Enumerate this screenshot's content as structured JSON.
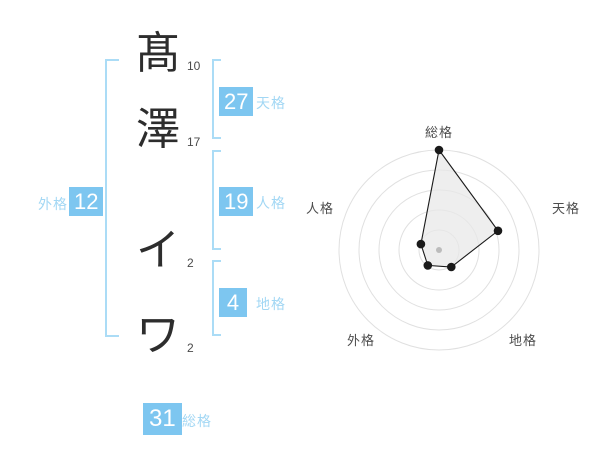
{
  "page": {
    "background": "#ffffff"
  },
  "name": {
    "full": "髙澤 イワ",
    "chars": [
      {
        "glyph": "髙",
        "strokes": "10"
      },
      {
        "glyph": "澤",
        "strokes": "17"
      },
      {
        "glyph": "イ",
        "strokes": "2"
      },
      {
        "glyph": "ワ",
        "strokes": "2"
      }
    ]
  },
  "kaku": {
    "tenkaku": {
      "label": "天格",
      "value": "27"
    },
    "jinkaku": {
      "label": "人格",
      "value": "19"
    },
    "chikaku": {
      "label": "地格",
      "value": "4"
    },
    "gaikaku": {
      "label": "外格",
      "value": "12"
    },
    "soukaku": {
      "label": "総格",
      "value": "31"
    }
  },
  "colors": {
    "badge_blue": "#7dc6f0",
    "label_blue": "#a2d7f4",
    "bracket_blue": "#abdcf6",
    "kanji_text": "#2d2d2d",
    "stroke_number_text": "#4a4a4a",
    "radar_ring": "#e0e0e0",
    "radar_line": "#1a1a1a",
    "radar_fill": "#e8e8e8",
    "radar_label": "#4d4d4d",
    "radar_center_dot": "#bcbcbc"
  },
  "chart_data": {
    "type": "radar",
    "axes": [
      "総格",
      "天格",
      "地格",
      "外格",
      "人格"
    ],
    "values": [
      1.0,
      0.62,
      0.21,
      0.19,
      0.19
    ],
    "value_range": [
      0,
      1
    ],
    "rings": 5,
    "grid": "concentric-circles",
    "legend": false,
    "start_angle_deg": -90,
    "clockwise": true
  }
}
